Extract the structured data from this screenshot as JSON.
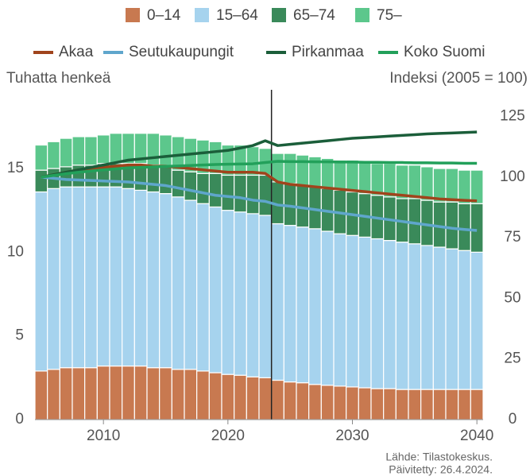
{
  "chart_data": {
    "type": "bar",
    "stacked": true,
    "y_label": "Tuhatta henkeä",
    "y2_label": "Indeksi (2005 = 100)",
    "source": "Lähde: Tilastokeskus.",
    "updated": "Päivitetty: 26.4.2024.",
    "x": [
      2005,
      2006,
      2007,
      2008,
      2009,
      2010,
      2011,
      2012,
      2013,
      2014,
      2015,
      2016,
      2017,
      2018,
      2019,
      2020,
      2021,
      2022,
      2023,
      2024,
      2025,
      2026,
      2027,
      2028,
      2029,
      2030,
      2031,
      2032,
      2033,
      2034,
      2035,
      2036,
      2037,
      2038,
      2039,
      2040
    ],
    "xlim": [
      2004.5,
      2040.5
    ],
    "xticks": [
      2010,
      2020,
      2030,
      2040
    ],
    "ylim": [
      0,
      19.7
    ],
    "yticks": [
      0,
      5,
      10,
      15
    ],
    "y2lim": [
      0,
      136
    ],
    "y2ticks": [
      0,
      25,
      50,
      75,
      100,
      125
    ],
    "divider_x": 2023.5,
    "series": [
      {
        "name": "0–14",
        "color": "#c87950",
        "values": [
          2.9,
          3.0,
          3.1,
          3.1,
          3.1,
          3.2,
          3.2,
          3.2,
          3.2,
          3.1,
          3.1,
          3.0,
          3.0,
          2.9,
          2.8,
          2.7,
          2.65,
          2.55,
          2.5,
          2.35,
          2.25,
          2.2,
          2.1,
          2.05,
          2.0,
          1.95,
          1.9,
          1.85,
          1.85,
          1.8,
          1.8,
          1.8,
          1.8,
          1.8,
          1.8,
          1.8
        ]
      },
      {
        "name": "15–64",
        "color": "#a6d3ee",
        "values": [
          10.7,
          10.8,
          10.8,
          10.8,
          10.8,
          10.7,
          10.7,
          10.6,
          10.5,
          10.5,
          10.4,
          10.3,
          10.1,
          10.0,
          9.9,
          9.8,
          9.75,
          9.75,
          9.7,
          9.35,
          9.35,
          9.3,
          9.3,
          9.2,
          9.1,
          9.05,
          9.0,
          8.95,
          8.85,
          8.8,
          8.7,
          8.6,
          8.5,
          8.4,
          8.3,
          8.2
        ]
      },
      {
        "name": "65–74",
        "color": "#3a8a5a",
        "values": [
          1.3,
          1.2,
          1.2,
          1.3,
          1.3,
          1.4,
          1.4,
          1.5,
          1.6,
          1.6,
          1.6,
          1.6,
          1.7,
          1.8,
          2.0,
          2.1,
          2.2,
          2.3,
          2.4,
          2.5,
          2.5,
          2.5,
          2.5,
          2.55,
          2.6,
          2.6,
          2.6,
          2.6,
          2.6,
          2.6,
          2.7,
          2.7,
          2.7,
          2.8,
          2.8,
          2.9
        ]
      },
      {
        "name": "75–",
        "color": "#5cc78c",
        "values": [
          1.5,
          1.6,
          1.7,
          1.7,
          1.7,
          1.7,
          1.8,
          1.8,
          1.8,
          1.9,
          1.9,
          2.0,
          2.0,
          2.0,
          1.9,
          1.8,
          1.8,
          1.7,
          1.6,
          1.7,
          1.8,
          1.8,
          1.8,
          1.8,
          1.8,
          1.9,
          1.9,
          1.9,
          2.0,
          2.0,
          2.0,
          2.0,
          2.0,
          2.0,
          2.0,
          2.0
        ]
      }
    ],
    "line_series": [
      {
        "name": "Akaa",
        "color": "#a0441c",
        "axis": "y2",
        "values": [
          100,
          101,
          102,
          103,
          103.5,
          104,
          104.5,
          105,
          105,
          104.5,
          104.5,
          104,
          103.5,
          103,
          102.5,
          102,
          102,
          102,
          101.5,
          98,
          97,
          96.5,
          96,
          95.5,
          95,
          94.5,
          94,
          93.5,
          93,
          92.5,
          92,
          91.5,
          91,
          90.7,
          90.4,
          90.2
        ]
      },
      {
        "name": "Seutukaupungit",
        "color": "#5fa6cc",
        "axis": "y2",
        "values": [
          100,
          99.5,
          99,
          98.8,
          98.6,
          98.4,
          98.2,
          98,
          97.5,
          97,
          96.5,
          95.5,
          94.5,
          93.5,
          92.5,
          92,
          91.5,
          90.5,
          90,
          88.5,
          88,
          87.3,
          86.6,
          85.9,
          85.2,
          84.5,
          83.8,
          83.1,
          82.4,
          81.7,
          81,
          80.3,
          79.6,
          78.9,
          78.4,
          78
        ]
      },
      {
        "name": "Pirkanmaa",
        "color": "#1b5e3a",
        "axis": "y2",
        "values": [
          100,
          101,
          102,
          103,
          104,
          105,
          106,
          107,
          107.5,
          108,
          108.5,
          109,
          109.5,
          110,
          110.5,
          111,
          112,
          113,
          115,
          113,
          113.5,
          114,
          114.5,
          115,
          115.5,
          116,
          116.3,
          116.6,
          116.9,
          117.2,
          117.5,
          117.8,
          118,
          118.2,
          118.4,
          118.6
        ]
      },
      {
        "name": "Koko Suomi",
        "color": "#22a05a",
        "axis": "y2",
        "values": [
          100,
          100.7,
          101.4,
          102,
          102.5,
          103,
          103.4,
          103.8,
          104,
          104.2,
          104.4,
          104.6,
          104.8,
          105,
          105.2,
          105.3,
          105.4,
          105.5,
          106,
          106.5,
          106.4,
          106.4,
          106.3,
          106.3,
          106.2,
          106.2,
          106.1,
          106.1,
          106,
          106,
          105.9,
          105.9,
          105.8,
          105.8,
          105.7,
          105.7
        ]
      }
    ]
  }
}
